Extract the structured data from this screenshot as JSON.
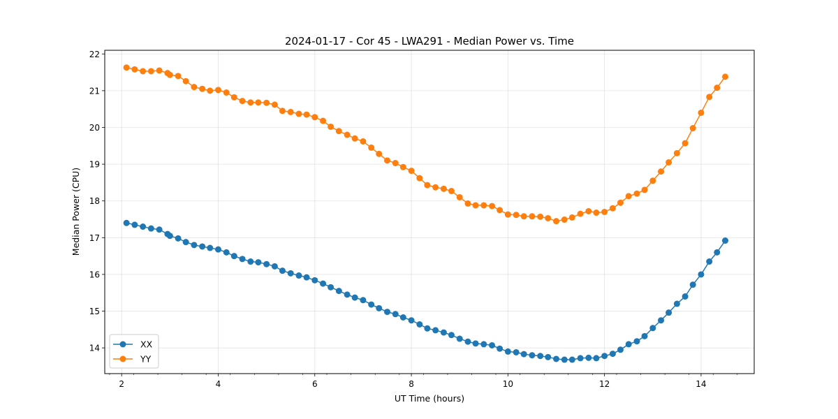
{
  "chart_data": {
    "type": "line",
    "title": "2024-01-17 - Cor 45 - LWA291 - Median Power vs. Time",
    "xlabel": "UT Time (hours)",
    "ylabel": "Median Power (CPU)",
    "xlim": [
      1.65,
      15.1
    ],
    "ylim": [
      13.3,
      22.1
    ],
    "xticks": [
      2,
      4,
      6,
      8,
      10,
      12,
      14
    ],
    "yticks": [
      14,
      15,
      16,
      17,
      18,
      19,
      20,
      21,
      22
    ],
    "xtick_labels": [
      "2",
      "4",
      "6",
      "8",
      "10",
      "12",
      "14"
    ],
    "ytick_labels": [
      "14",
      "15",
      "16",
      "17",
      "18",
      "19",
      "20",
      "21",
      "22"
    ],
    "grid": true,
    "legend_position": "lower-left",
    "x": [
      2.1,
      2.27,
      2.44,
      2.61,
      2.78,
      2.95,
      3.0,
      3.17,
      3.33,
      3.5,
      3.67,
      3.83,
      4.0,
      4.17,
      4.33,
      4.5,
      4.67,
      4.83,
      5.0,
      5.17,
      5.33,
      5.5,
      5.67,
      5.83,
      6.0,
      6.17,
      6.33,
      6.5,
      6.67,
      6.83,
      7.0,
      7.17,
      7.33,
      7.5,
      7.67,
      7.83,
      8.0,
      8.17,
      8.33,
      8.5,
      8.67,
      8.83,
      9.0,
      9.17,
      9.33,
      9.5,
      9.67,
      9.83,
      10.0,
      10.17,
      10.33,
      10.5,
      10.67,
      10.83,
      11.0,
      11.17,
      11.33,
      11.5,
      11.67,
      11.83,
      12.0,
      12.17,
      12.33,
      12.5,
      12.67,
      12.83,
      13.0,
      13.17,
      13.33,
      13.5,
      13.67,
      13.83,
      14.0,
      14.17,
      14.33,
      14.5
    ],
    "series": [
      {
        "name": "XX",
        "color": "#1f77b4",
        "values": [
          17.4,
          17.35,
          17.3,
          17.25,
          17.22,
          17.1,
          17.05,
          16.98,
          16.88,
          16.8,
          16.76,
          16.72,
          16.68,
          16.6,
          16.5,
          16.42,
          16.35,
          16.33,
          16.28,
          16.22,
          16.1,
          16.03,
          15.97,
          15.92,
          15.84,
          15.75,
          15.65,
          15.55,
          15.45,
          15.37,
          15.3,
          15.18,
          15.08,
          14.98,
          14.92,
          14.83,
          14.75,
          14.64,
          14.53,
          14.48,
          14.42,
          14.35,
          14.25,
          14.17,
          14.12,
          14.1,
          14.07,
          13.98,
          13.9,
          13.88,
          13.83,
          13.8,
          13.78,
          13.75,
          13.7,
          13.68,
          13.68,
          13.72,
          13.73,
          13.72,
          13.78,
          13.84,
          13.95,
          14.1,
          14.18,
          14.32,
          14.54,
          14.75,
          14.96,
          15.2,
          15.4,
          15.72,
          16.0,
          16.35,
          16.6,
          16.92
        ]
      },
      {
        "name": "YY",
        "color": "#ff7f0e",
        "values": [
          21.63,
          21.58,
          21.53,
          21.53,
          21.55,
          21.48,
          21.43,
          21.4,
          21.26,
          21.1,
          21.05,
          21.0,
          21.02,
          20.95,
          20.82,
          20.72,
          20.68,
          20.68,
          20.67,
          20.62,
          20.45,
          20.42,
          20.37,
          20.35,
          20.28,
          20.18,
          20.02,
          19.9,
          19.8,
          19.7,
          19.62,
          19.45,
          19.28,
          19.1,
          19.03,
          18.92,
          18.82,
          18.62,
          18.43,
          18.37,
          18.33,
          18.27,
          18.1,
          17.93,
          17.88,
          17.88,
          17.86,
          17.75,
          17.63,
          17.62,
          17.58,
          17.58,
          17.57,
          17.53,
          17.45,
          17.49,
          17.55,
          17.65,
          17.72,
          17.68,
          17.7,
          17.8,
          17.95,
          18.13,
          18.2,
          18.3,
          18.55,
          18.8,
          19.05,
          19.3,
          19.57,
          19.98,
          20.4,
          20.83,
          21.08,
          21.38
        ]
      }
    ]
  }
}
